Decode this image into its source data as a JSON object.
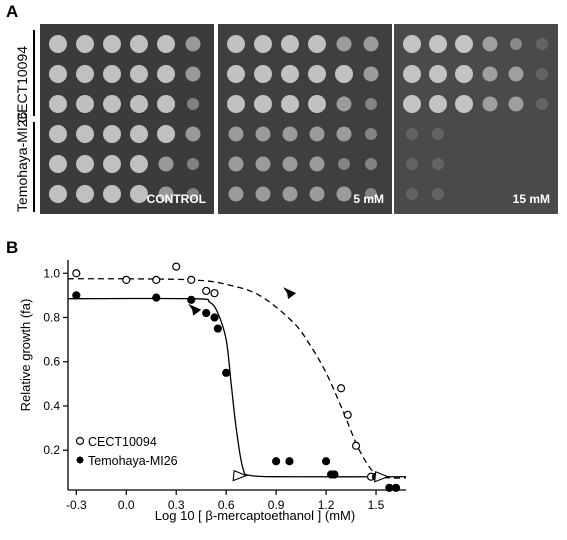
{
  "panel_a": {
    "letter": "A",
    "strains": [
      "CECT10094",
      "Temohaya-MI26"
    ],
    "plates": [
      {
        "label": "CONTROL",
        "bg": "#3b3b3b"
      },
      {
        "label": "5 mM",
        "bg": "#3f3f3f"
      },
      {
        "label": "15 mM",
        "bg": "#4a4a4a"
      }
    ]
  },
  "panel_b": {
    "letter": "B"
  },
  "chart_data": {
    "type": "scatter",
    "xlabel": "Log 10 [ β-mercaptoethanol ] (mM)",
    "ylabel": "Relative growth (fa)",
    "xlim": [
      -0.35,
      1.68
    ],
    "ylim": [
      0.02,
      1.06
    ],
    "xticks": [
      "-0.3",
      "0.0",
      "0.3",
      "0.6",
      "0.9",
      "1.2",
      "1.5"
    ],
    "xtick_values": [
      -0.3,
      0.0,
      0.3,
      0.6,
      0.9,
      1.2,
      1.5
    ],
    "yticks": [
      "0.2",
      "0.4",
      "0.6",
      "0.8",
      "1.0"
    ],
    "ytick_values": [
      0.2,
      0.4,
      0.6,
      0.8,
      1.0
    ],
    "legend_position": "bottom-left",
    "series": [
      {
        "name": "CECT10094",
        "marker": "open-circle",
        "line_style": "dashed",
        "x": [
          -0.3,
          0.0,
          0.18,
          0.3,
          0.39,
          0.48,
          0.53,
          1.29,
          1.33,
          1.38,
          1.47
        ],
        "y": [
          1.0,
          0.97,
          0.97,
          1.03,
          0.97,
          0.92,
          0.91,
          0.48,
          0.36,
          0.22,
          0.08
        ],
        "curve_x": [
          -0.35,
          0.0,
          0.4,
          0.6,
          0.8,
          1.0,
          1.1,
          1.2,
          1.3,
          1.4,
          1.5,
          1.6,
          1.68
        ],
        "curve_y": [
          0.975,
          0.975,
          0.97,
          0.95,
          0.9,
          0.78,
          0.68,
          0.55,
          0.38,
          0.2,
          0.09,
          0.075,
          0.075
        ]
      },
      {
        "name": "Temohaya-MI26",
        "marker": "filled-circle",
        "line_style": "solid",
        "x": [
          -0.3,
          0.18,
          0.39,
          0.48,
          0.53,
          0.55,
          0.6,
          0.9,
          0.98,
          1.2,
          1.23,
          1.25,
          1.5,
          1.58,
          1.62
        ],
        "y": [
          0.9,
          0.89,
          0.88,
          0.82,
          0.8,
          0.75,
          0.55,
          0.15,
          0.15,
          0.15,
          0.09,
          0.09,
          0.08,
          0.03,
          0.03
        ],
        "curve_x": [
          -0.35,
          0.4,
          0.5,
          0.55,
          0.6,
          0.63,
          0.66,
          0.7,
          0.75,
          1.0,
          1.68
        ],
        "curve_y": [
          0.885,
          0.885,
          0.87,
          0.82,
          0.7,
          0.5,
          0.3,
          0.12,
          0.085,
          0.08,
          0.08
        ]
      }
    ],
    "annotations": [
      {
        "type": "filled-arrow",
        "x": 1.02,
        "y": 0.91
      },
      {
        "type": "filled-arrow",
        "x": 0.45,
        "y": 0.835
      },
      {
        "type": "open-arrow",
        "x": 0.72,
        "y": 0.085
      },
      {
        "type": "open-arrow",
        "x": 1.57,
        "y": 0.08
      }
    ]
  }
}
